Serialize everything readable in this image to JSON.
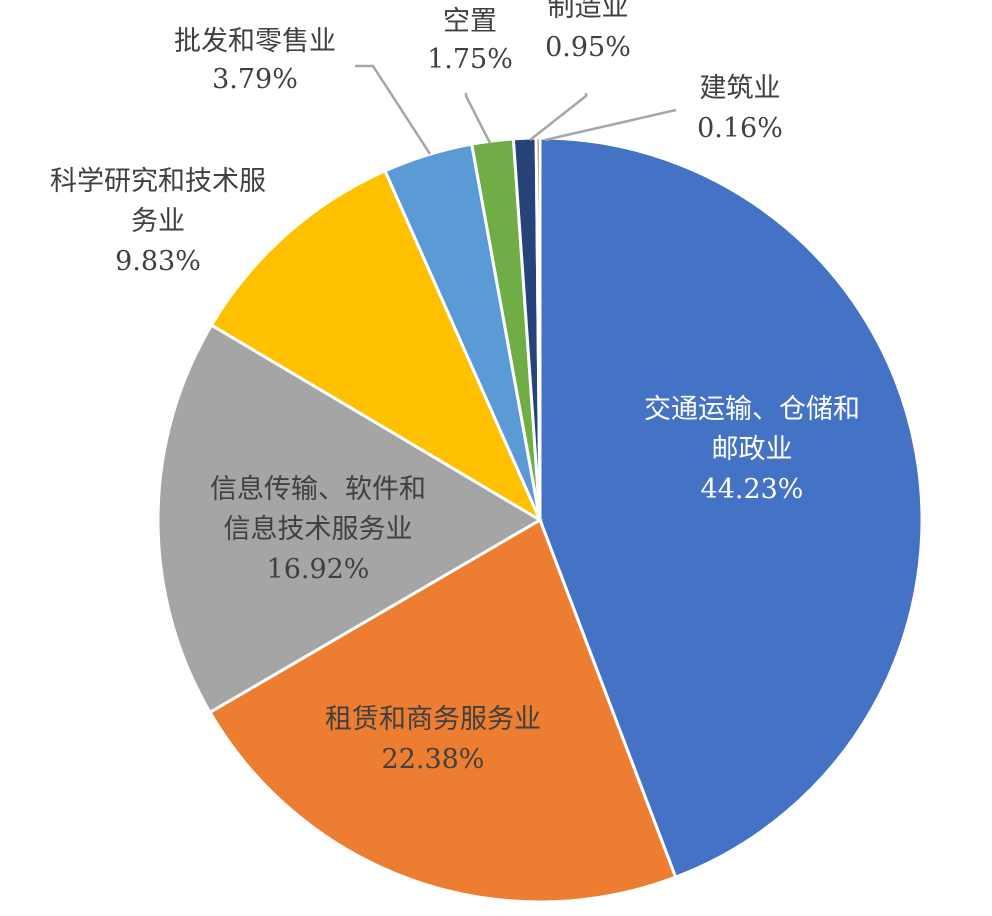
{
  "chart_data": {
    "type": "pie",
    "start": "top, clockwise",
    "slices": [
      {
        "label_lines": [
          "交通运输、仓储和",
          "邮政业"
        ],
        "pct_text": "44.23%",
        "value": 44.23,
        "color": "#4472c4",
        "label_pos": "inside",
        "label_style": "light"
      },
      {
        "label_lines": [
          "租赁和商务服务业"
        ],
        "pct_text": "22.38%",
        "value": 22.38,
        "color": "#ed7d31",
        "label_pos": "inside",
        "label_style": "dark"
      },
      {
        "label_lines": [
          "信息传输、软件和",
          "信息技术服务业"
        ],
        "pct_text": "16.92%",
        "value": 16.92,
        "color": "#a5a5a5",
        "label_pos": "inside",
        "label_style": "dark"
      },
      {
        "label_lines": [
          "科学研究和技术服",
          "务业"
        ],
        "pct_text": "9.83%",
        "value": 9.83,
        "color": "#ffc000",
        "label_pos": "outside",
        "label_style": "dark"
      },
      {
        "label_lines": [
          "批发和零售业"
        ],
        "pct_text": "3.79%",
        "value": 3.79,
        "color": "#5b9bd5",
        "label_pos": "outside",
        "label_style": "dark"
      },
      {
        "label_lines": [
          "空置"
        ],
        "pct_text": "1.75%",
        "value": 1.75,
        "color": "#70ad47",
        "label_pos": "outside",
        "label_style": "dark"
      },
      {
        "label_lines": [
          "制造业"
        ],
        "pct_text": "0.95%",
        "value": 0.95,
        "color": "#264478",
        "label_pos": "outside",
        "label_style": "dark"
      },
      {
        "label_lines": [
          "建筑业"
        ],
        "pct_text": "0.16%",
        "value": 0.16,
        "color": "#9e480e",
        "label_pos": "outside",
        "label_style": "dark"
      }
    ],
    "legend": "none",
    "title": ""
  }
}
